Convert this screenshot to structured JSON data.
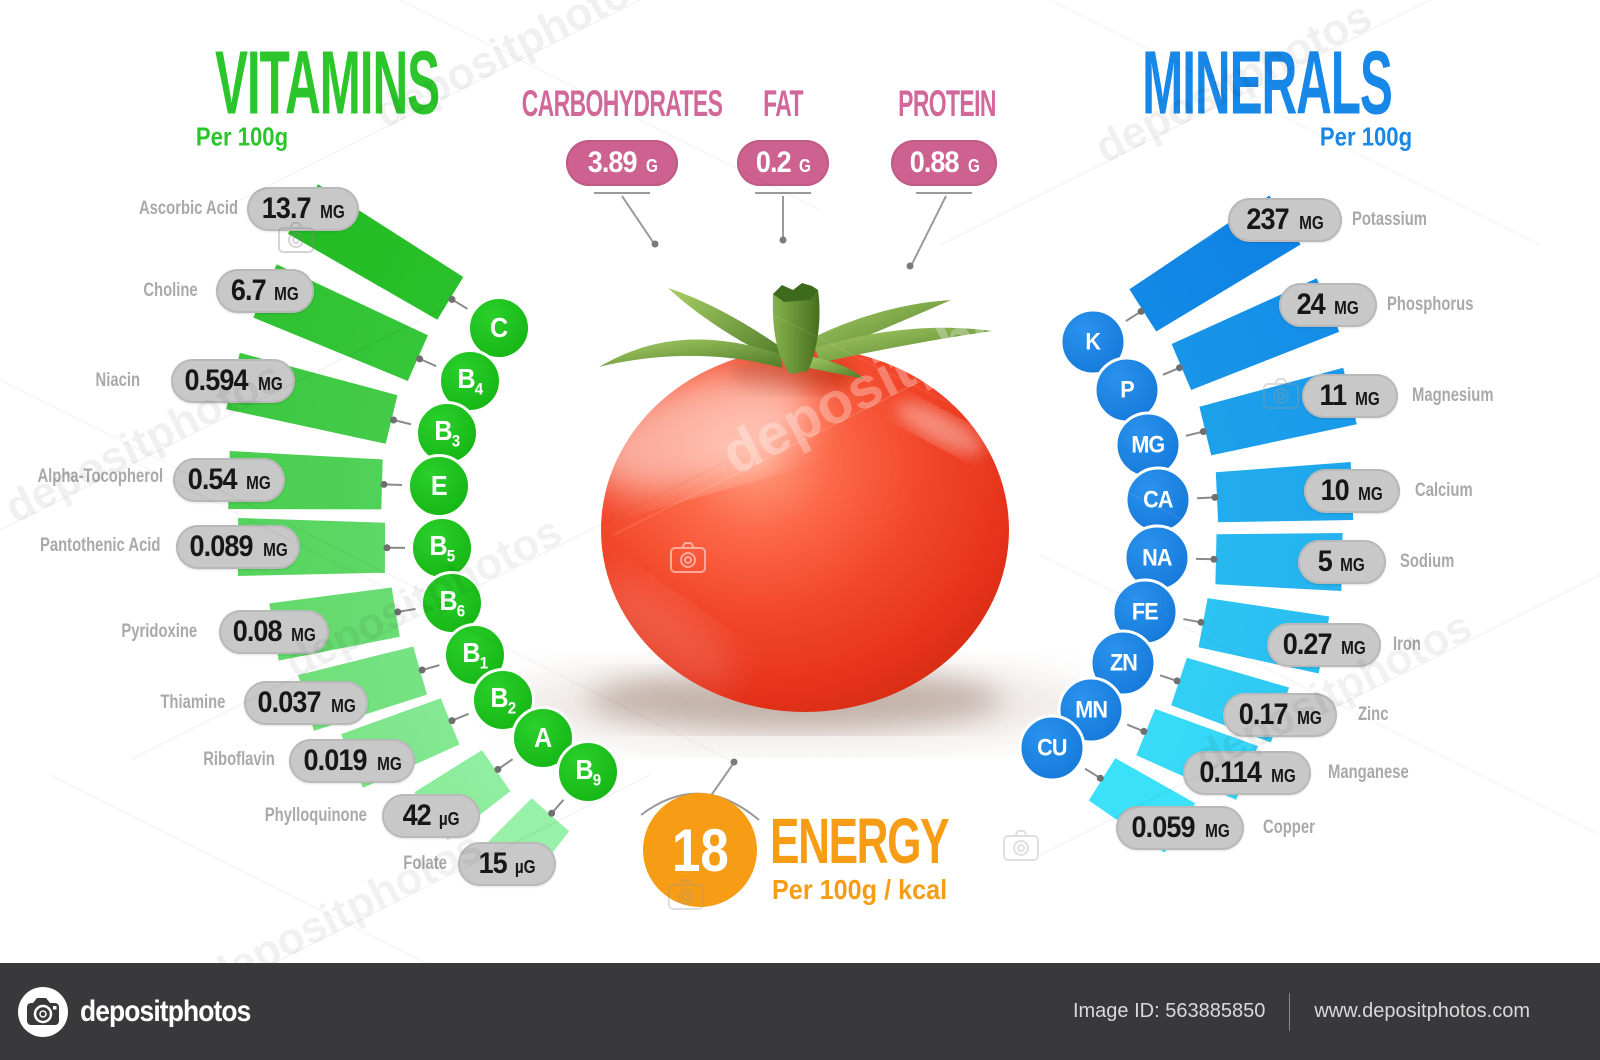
{
  "watermark": {
    "text": "depositphotos"
  },
  "vitamins": {
    "title": "VITAMINS",
    "subtitle": "Per 100g",
    "items": [
      {
        "name": "Ascorbic Acid",
        "value": "13.7",
        "unit": "MG",
        "symbol": "C",
        "subscript": ""
      },
      {
        "name": "Choline",
        "value": "6.7",
        "unit": "MG",
        "symbol": "B",
        "subscript": "4"
      },
      {
        "name": "Niacin",
        "value": "0.594",
        "unit": "MG",
        "symbol": "B",
        "subscript": "3"
      },
      {
        "name": "Alpha-Tocopherol",
        "value": "0.54",
        "unit": "MG",
        "symbol": "E",
        "subscript": ""
      },
      {
        "name": "Pantothenic Acid",
        "value": "0.089",
        "unit": "MG",
        "symbol": "B",
        "subscript": "5"
      },
      {
        "name": "Pyridoxine",
        "value": "0.08",
        "unit": "MG",
        "symbol": "B",
        "subscript": "6"
      },
      {
        "name": "Thiamine",
        "value": "0.037",
        "unit": "MG",
        "symbol": "B",
        "subscript": "1"
      },
      {
        "name": "Riboflavin",
        "value": "0.019",
        "unit": "MG",
        "symbol": "B",
        "subscript": "2"
      },
      {
        "name": "Phylloquinone",
        "value": "42",
        "unit": "µG",
        "symbol": "A",
        "subscript": ""
      },
      {
        "name": "Folate",
        "value": "15",
        "unit": "µG",
        "symbol": "B",
        "subscript": "9"
      }
    ]
  },
  "minerals": {
    "title": "MINERALS",
    "subtitle": "Per 100g",
    "items": [
      {
        "name": "Potassium",
        "value": "237",
        "unit": "MG",
        "symbol": "K"
      },
      {
        "name": "Phosphorus",
        "value": "24",
        "unit": "MG",
        "symbol": "P"
      },
      {
        "name": "Magnesium",
        "value": "11",
        "unit": "MG",
        "symbol": "MG"
      },
      {
        "name": "Calcium",
        "value": "10",
        "unit": "MG",
        "symbol": "CA"
      },
      {
        "name": "Sodium",
        "value": "5",
        "unit": "MG",
        "symbol": "NA"
      },
      {
        "name": "Iron",
        "value": "0.27",
        "unit": "MG",
        "symbol": "FE"
      },
      {
        "name": "Zinc",
        "value": "0.17",
        "unit": "MG",
        "symbol": "ZN"
      },
      {
        "name": "Manganese",
        "value": "0.114",
        "unit": "MG",
        "symbol": "MN"
      },
      {
        "name": "Copper",
        "value": "0.059",
        "unit": "MG",
        "symbol": "CU"
      }
    ]
  },
  "macros": {
    "items": [
      {
        "label": "CARBOHYDRATES",
        "value": "3.89",
        "unit": "G"
      },
      {
        "label": "FAT",
        "value": "0.2",
        "unit": "G"
      },
      {
        "label": "PROTEIN",
        "value": "0.88",
        "unit": "G"
      }
    ]
  },
  "energy": {
    "value": "18",
    "label": "ENERGY",
    "subtitle": "Per 100g / kcal"
  },
  "footer": {
    "brand": "depositphotos",
    "image_id": "Image ID: 563885850",
    "website": "www.depositphotos.com"
  },
  "colors": {
    "green": "#2cc62c",
    "green_ribbon_start": "#22bc22",
    "green_ribbon_end": "#97f1a8",
    "blue": "#1787e8",
    "blue_ribbon_start": "#0f82e4",
    "blue_ribbon_end": "#3ae1f8",
    "pink": "#cd6190",
    "orange": "#f79c15",
    "pill_gray": "#c8c8c8",
    "label_gray": "#a9a9a9",
    "footer_bg": "#39393b"
  }
}
